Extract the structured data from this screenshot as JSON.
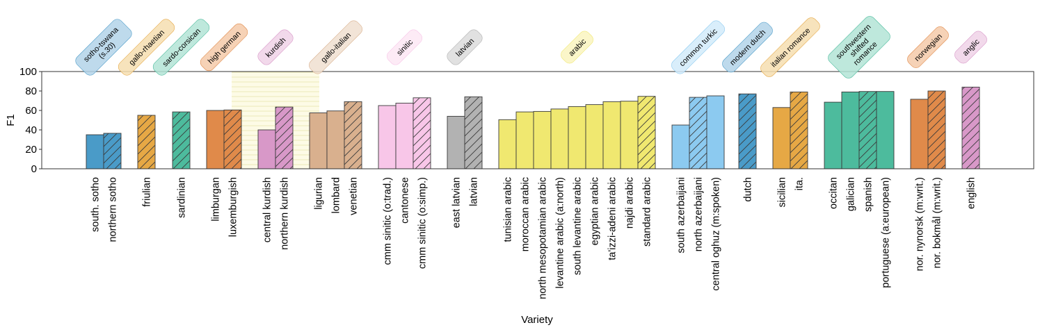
{
  "chart_data": {
    "type": "bar",
    "xlabel": "Variety",
    "ylabel": "F1",
    "ylim": [
      0,
      100
    ],
    "yticks": [
      0,
      20,
      40,
      60,
      80,
      100
    ],
    "grid": false,
    "legend": "none",
    "highlight_group": "kurdish",
    "groups": [
      {
        "name": "sotho-tswana (s.30)",
        "color": "#4a9bc8",
        "label_fill": "#b3d4e9",
        "bars": [
          {
            "label": "south. sotho",
            "value": 35,
            "hatch": false
          },
          {
            "label": "northern sotho",
            "value": 36.5,
            "hatch": true
          }
        ]
      },
      {
        "name": "gallo-rhaetian",
        "color": "#e6a845",
        "label_fill": "#f6deb0",
        "bars": [
          {
            "label": "friulian",
            "value": 55,
            "hatch": true
          }
        ]
      },
      {
        "name": "sardo-corsican",
        "color": "#4dbb9d",
        "label_fill": "#b3e4d6",
        "bars": [
          {
            "label": "sardinian",
            "value": 58.5,
            "hatch": true
          }
        ]
      },
      {
        "name": "high german",
        "color": "#e08a4a",
        "label_fill": "#f4caa9",
        "bars": [
          {
            "label": "limburgan",
            "value": 60,
            "hatch": false
          },
          {
            "label": "luxemburgish",
            "value": 60.5,
            "hatch": true
          }
        ]
      },
      {
        "name": "kurdish",
        "color": "#d898c8",
        "label_fill": "#f0d2e8",
        "bars": [
          {
            "label": "central kurdish",
            "value": 40,
            "hatch": false
          },
          {
            "label": "northern kurdish",
            "value": 63.5,
            "hatch": true
          }
        ]
      },
      {
        "name": "gallo-italian",
        "color": "#d9b08e",
        "label_fill": "#f0dfd0",
        "bars": [
          {
            "label": "ligurian",
            "value": 57.5,
            "hatch": false
          },
          {
            "label": "lombard",
            "value": 59.5,
            "hatch": false
          },
          {
            "label": "venetian",
            "value": 69,
            "hatch": true
          }
        ]
      },
      {
        "name": "sinitic",
        "color": "#f8c6e8",
        "label_fill": "#fde7f5",
        "bars": [
          {
            "label": "cmm sinitic (o:trad.)",
            "value": 65,
            "hatch": false
          },
          {
            "label": "cantonese",
            "value": 67.5,
            "hatch": false
          },
          {
            "label": "cmm sinitic (o:simp.)",
            "value": 73,
            "hatch": true
          }
        ]
      },
      {
        "name": "latvian",
        "color": "#b2b2b2",
        "label_fill": "#dcdcdc",
        "bars": [
          {
            "label": "east latvian",
            "value": 54,
            "hatch": false
          },
          {
            "label": "latvian",
            "value": 74,
            "hatch": true
          }
        ]
      },
      {
        "name": "arabic",
        "color": "#f0e870",
        "label_fill": "#faf5c0",
        "bars": [
          {
            "label": "tunisian arabic",
            "value": 50.5,
            "hatch": false
          },
          {
            "label": "moroccan arabic",
            "value": 58.5,
            "hatch": false
          },
          {
            "label": "north mesopotamian arabic",
            "value": 59,
            "hatch": false
          },
          {
            "label": "levantine arabic (a:north)",
            "value": 61.5,
            "hatch": false
          },
          {
            "label": "south levantine arabic",
            "value": 64,
            "hatch": false
          },
          {
            "label": "egyptian arabic",
            "value": 66,
            "hatch": false
          },
          {
            "label": "ta'izzi-adeni arabic",
            "value": 69,
            "hatch": false
          },
          {
            "label": "najdi arabic",
            "value": 69.5,
            "hatch": false
          },
          {
            "label": "standard arabic",
            "value": 74.5,
            "hatch": true
          }
        ]
      },
      {
        "name": "common turkic",
        "color": "#8ccaf0",
        "label_fill": "#d2ebfa",
        "bars": [
          {
            "label": "south azerbaijani",
            "value": 45,
            "hatch": false
          },
          {
            "label": "north azerbaijani",
            "value": 73.5,
            "hatch": true
          },
          {
            "label": "central oghuz (m:spoken)",
            "value": 75,
            "hatch": false
          }
        ]
      },
      {
        "name": "modern dutch",
        "color": "#4a9bc8",
        "label_fill": "#b3d4e9",
        "bars": [
          {
            "label": "dutch",
            "value": 77,
            "hatch": true
          }
        ]
      },
      {
        "name": "italian romance",
        "color": "#e6a845",
        "label_fill": "#f6deb0",
        "bars": [
          {
            "label": "sicilian",
            "value": 63,
            "hatch": false
          },
          {
            "label": "ita.",
            "value": 79,
            "hatch": true
          }
        ]
      },
      {
        "name": "southwestern shifted romance",
        "color": "#4dbb9d",
        "label_fill": "#b3e4d6",
        "bars": [
          {
            "label": "occitan",
            "value": 68.5,
            "hatch": false
          },
          {
            "label": "galician",
            "value": 79,
            "hatch": false
          },
          {
            "label": "spanish",
            "value": 79.5,
            "hatch": true
          },
          {
            "label": "portuguese (a:european)",
            "value": 79.5,
            "hatch": false
          }
        ]
      },
      {
        "name": "norwegian",
        "color": "#e08a4a",
        "label_fill": "#f4caa9",
        "bars": [
          {
            "label": "nor. nynorsk (m:writ.)",
            "value": 71.5,
            "hatch": false
          },
          {
            "label": "nor. bokmål (m:writ.)",
            "value": 80,
            "hatch": true
          }
        ]
      },
      {
        "name": "anglic",
        "color": "#d898c8",
        "label_fill": "#f0d2e8",
        "bars": [
          {
            "label": "english",
            "value": 84,
            "hatch": true
          }
        ]
      }
    ]
  }
}
